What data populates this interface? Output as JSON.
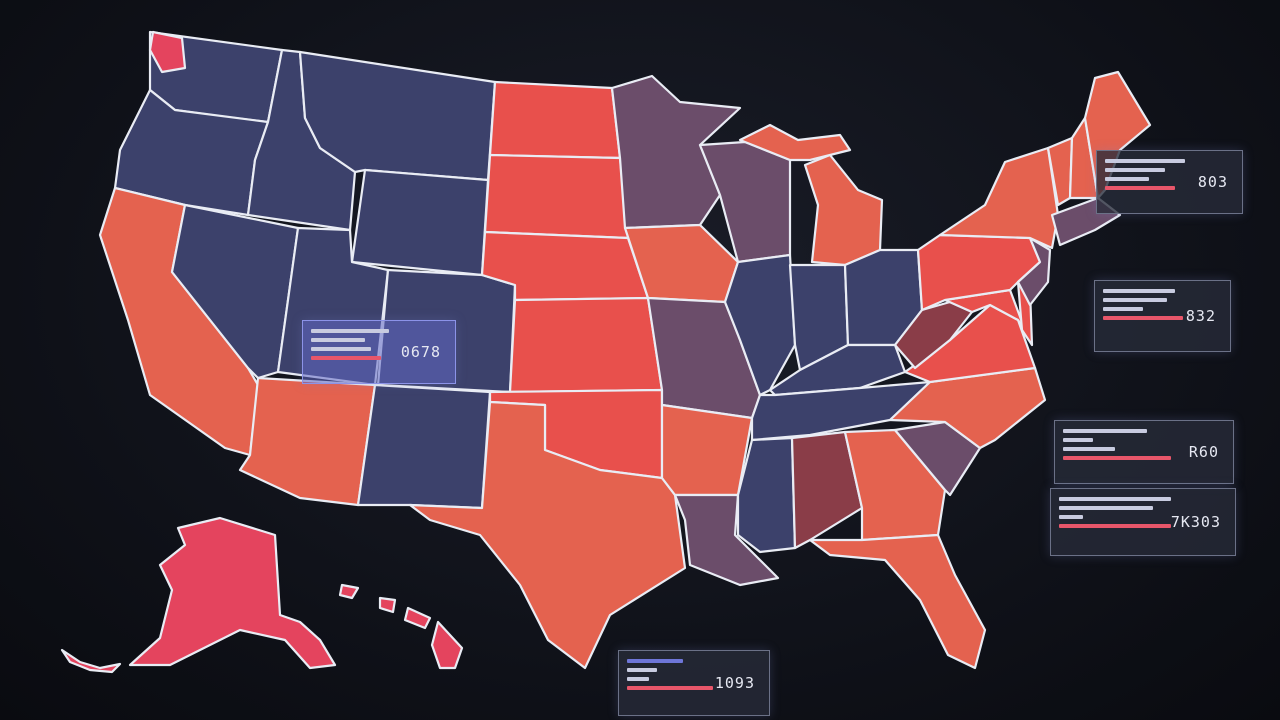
{
  "map": {
    "colors": {
      "blue": "#3c416b",
      "red": "#e8504c",
      "coral": "#e4624f",
      "purple": "#6b4d6a",
      "maroon": "#8a3d48",
      "pink": "#e4445e",
      "stroke": "#e9ecf4",
      "background": "#0e1017"
    },
    "regions": [
      {
        "name": "washington",
        "fill": "blue"
      },
      {
        "name": "washington-nw",
        "fill": "pink"
      },
      {
        "name": "oregon",
        "fill": "blue"
      },
      {
        "name": "california",
        "fill": "coral"
      },
      {
        "name": "idaho",
        "fill": "blue"
      },
      {
        "name": "nevada",
        "fill": "blue"
      },
      {
        "name": "montana",
        "fill": "blue"
      },
      {
        "name": "wyoming",
        "fill": "blue"
      },
      {
        "name": "utah",
        "fill": "blue"
      },
      {
        "name": "arizona",
        "fill": "coral"
      },
      {
        "name": "colorado",
        "fill": "blue"
      },
      {
        "name": "new-mexico",
        "fill": "blue"
      },
      {
        "name": "north-dakota",
        "fill": "red"
      },
      {
        "name": "south-dakota",
        "fill": "red"
      },
      {
        "name": "nebraska",
        "fill": "red"
      },
      {
        "name": "kansas",
        "fill": "red"
      },
      {
        "name": "oklahoma",
        "fill": "red"
      },
      {
        "name": "texas",
        "fill": "coral"
      },
      {
        "name": "minnesota",
        "fill": "purple"
      },
      {
        "name": "iowa",
        "fill": "coral"
      },
      {
        "name": "missouri",
        "fill": "purple"
      },
      {
        "name": "arkansas",
        "fill": "coral"
      },
      {
        "name": "louisiana",
        "fill": "purple"
      },
      {
        "name": "wisconsin",
        "fill": "purple"
      },
      {
        "name": "illinois",
        "fill": "blue"
      },
      {
        "name": "michigan",
        "fill": "coral"
      },
      {
        "name": "indiana",
        "fill": "blue"
      },
      {
        "name": "ohio",
        "fill": "blue"
      },
      {
        "name": "kentucky",
        "fill": "blue"
      },
      {
        "name": "tennessee",
        "fill": "blue"
      },
      {
        "name": "mississippi",
        "fill": "blue"
      },
      {
        "name": "alabama",
        "fill": "maroon"
      },
      {
        "name": "georgia",
        "fill": "coral"
      },
      {
        "name": "florida",
        "fill": "coral"
      },
      {
        "name": "south-carolina",
        "fill": "purple"
      },
      {
        "name": "north-carolina",
        "fill": "coral"
      },
      {
        "name": "virginia",
        "fill": "red"
      },
      {
        "name": "west-virginia",
        "fill": "maroon"
      },
      {
        "name": "maryland",
        "fill": "red"
      },
      {
        "name": "delaware",
        "fill": "red"
      },
      {
        "name": "pennsylvania",
        "fill": "red"
      },
      {
        "name": "new-jersey",
        "fill": "purple"
      },
      {
        "name": "new-york",
        "fill": "coral"
      },
      {
        "name": "new-england-south",
        "fill": "purple"
      },
      {
        "name": "vermont",
        "fill": "coral"
      },
      {
        "name": "new-hampshire",
        "fill": "coral"
      },
      {
        "name": "maine",
        "fill": "coral"
      },
      {
        "name": "alaska",
        "fill": "pink"
      },
      {
        "name": "hawaii",
        "fill": "pink"
      }
    ]
  },
  "panels": [
    {
      "id": "utah",
      "value": "0678"
    },
    {
      "id": "northeast",
      "value": "803"
    },
    {
      "id": "mid-atlantic",
      "value": "832"
    },
    {
      "id": "southeast",
      "value": "R60"
    },
    {
      "id": "gulf",
      "value": "7K303"
    },
    {
      "id": "bottom",
      "value": "1093"
    }
  ]
}
